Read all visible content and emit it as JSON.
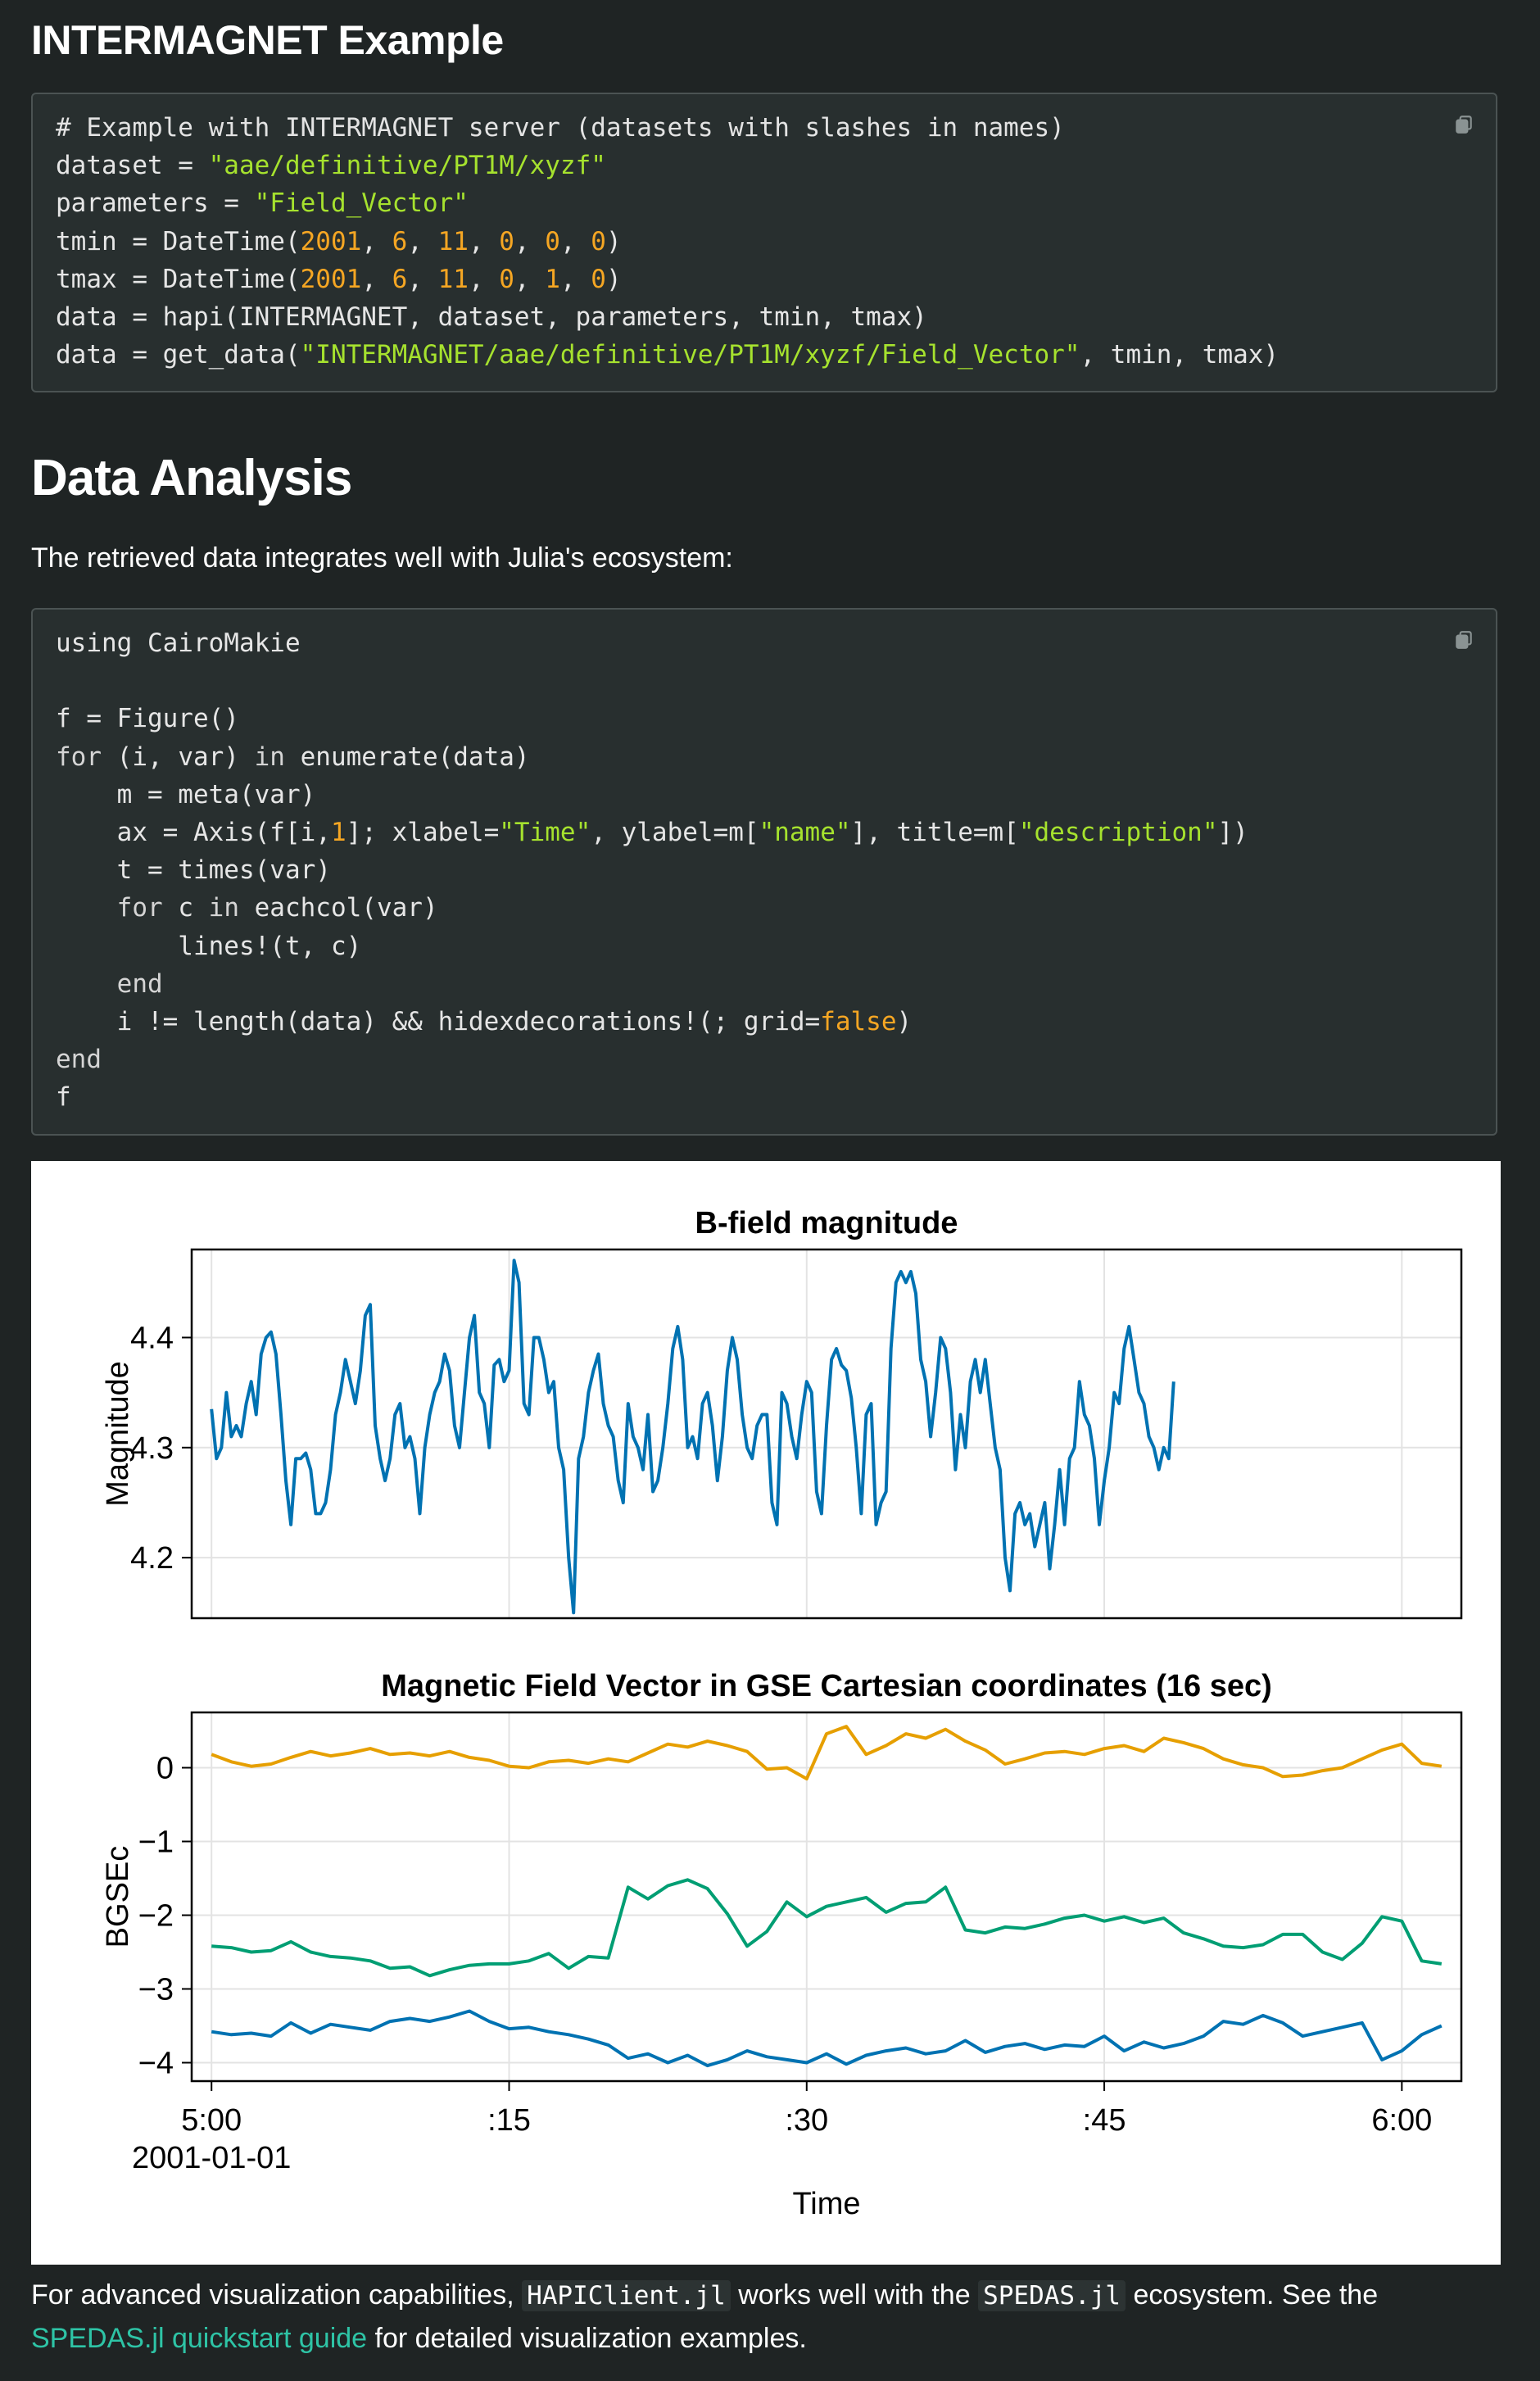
{
  "sections": {
    "intermagnet_heading": "INTERMAGNET Example",
    "analysis_heading": "Data Analysis",
    "analysis_intro": "The retrieved data integrates well with Julia's ecosystem:"
  },
  "code_block_1": {
    "lines": [
      [
        {
          "t": "# Example with INTERMAGNET server (datasets with slashes in names)",
          "c": "c"
        }
      ],
      [
        {
          "t": "dataset = ",
          "c": ""
        },
        {
          "t": "\"aae/definitive/PT1M/xyzf\"",
          "c": "s"
        }
      ],
      [
        {
          "t": "parameters = ",
          "c": ""
        },
        {
          "t": "\"Field_Vector\"",
          "c": "s"
        }
      ],
      [
        {
          "t": "tmin = DateTime(",
          "c": ""
        },
        {
          "t": "2001",
          "c": "n"
        },
        {
          "t": ", ",
          "c": ""
        },
        {
          "t": "6",
          "c": "n"
        },
        {
          "t": ", ",
          "c": ""
        },
        {
          "t": "11",
          "c": "n"
        },
        {
          "t": ", ",
          "c": ""
        },
        {
          "t": "0",
          "c": "n"
        },
        {
          "t": ", ",
          "c": ""
        },
        {
          "t": "0",
          "c": "n"
        },
        {
          "t": ", ",
          "c": ""
        },
        {
          "t": "0",
          "c": "n"
        },
        {
          "t": ")",
          "c": ""
        }
      ],
      [
        {
          "t": "tmax = DateTime(",
          "c": ""
        },
        {
          "t": "2001",
          "c": "n"
        },
        {
          "t": ", ",
          "c": ""
        },
        {
          "t": "6",
          "c": "n"
        },
        {
          "t": ", ",
          "c": ""
        },
        {
          "t": "11",
          "c": "n"
        },
        {
          "t": ", ",
          "c": ""
        },
        {
          "t": "0",
          "c": "n"
        },
        {
          "t": ", ",
          "c": ""
        },
        {
          "t": "1",
          "c": "n"
        },
        {
          "t": ", ",
          "c": ""
        },
        {
          "t": "0",
          "c": "n"
        },
        {
          "t": ")",
          "c": ""
        }
      ],
      [
        {
          "t": "data = hapi(INTERMAGNET, dataset, parameters, tmin, tmax)",
          "c": ""
        }
      ],
      [
        {
          "t": "data = get_data(",
          "c": ""
        },
        {
          "t": "\"INTERMAGNET/aae/definitive/PT1M/xyzf/Field_Vector\"",
          "c": "s"
        },
        {
          "t": ", tmin, tmax)",
          "c": ""
        }
      ]
    ]
  },
  "code_block_2": {
    "lines": [
      [
        {
          "t": "using CairoMakie",
          "c": ""
        }
      ],
      [
        {
          "t": "",
          "c": ""
        }
      ],
      [
        {
          "t": "f = Figure()",
          "c": ""
        }
      ],
      [
        {
          "t": "for",
          "c": "k"
        },
        {
          "t": " (i, var) ",
          "c": ""
        },
        {
          "t": "in",
          "c": "k"
        },
        {
          "t": " enumerate(data)",
          "c": ""
        }
      ],
      [
        {
          "t": "    m = meta(var)",
          "c": ""
        }
      ],
      [
        {
          "t": "    ax = Axis(f[i,",
          "c": ""
        },
        {
          "t": "1",
          "c": "n"
        },
        {
          "t": "]; xlabel=",
          "c": ""
        },
        {
          "t": "\"Time\"",
          "c": "s"
        },
        {
          "t": ", ylabel=m[",
          "c": ""
        },
        {
          "t": "\"name\"",
          "c": "s"
        },
        {
          "t": "], title=m[",
          "c": ""
        },
        {
          "t": "\"description\"",
          "c": "s"
        },
        {
          "t": "])",
          "c": ""
        }
      ],
      [
        {
          "t": "    t = times(var)",
          "c": ""
        }
      ],
      [
        {
          "t": "    for",
          "c": "k"
        },
        {
          "t": " c ",
          "c": ""
        },
        {
          "t": "in",
          "c": "k"
        },
        {
          "t": " eachcol(var)",
          "c": ""
        }
      ],
      [
        {
          "t": "        lines!(t, c)",
          "c": ""
        }
      ],
      [
        {
          "t": "    end",
          "c": "k"
        }
      ],
      [
        {
          "t": "    i != length(data) && hidexdecorations!(; grid=",
          "c": ""
        },
        {
          "t": "false",
          "c": "n"
        },
        {
          "t": ")",
          "c": ""
        }
      ],
      [
        {
          "t": "end",
          "c": "k"
        }
      ],
      [
        {
          "t": "f",
          "c": ""
        }
      ]
    ]
  },
  "colors": {
    "keyword": "#d5d5d5",
    "string": "#a6e22e",
    "number": "#f5a623",
    "series_blue": "#0072b2",
    "series_orange": "#e69f00",
    "series_green": "#009e73",
    "link": "#2ec4a6"
  },
  "icons": {
    "copy": "copy-icon"
  },
  "chart_data": [
    {
      "type": "line",
      "title": "B-field magnitude",
      "ylabel": "Magnitude",
      "xlabel": "",
      "xlim_minutes": [
        -1,
        63
      ],
      "ylim": [
        4.145,
        4.48
      ],
      "yticks": [
        4.2,
        4.3,
        4.4
      ],
      "ytick_labels": [
        "4.2",
        "4.3",
        "4.4"
      ],
      "xticks_minutes": [
        0,
        15,
        30,
        45,
        60
      ],
      "grid": true,
      "series": [
        {
          "color": "#0072b2",
          "t0_minutes": 0,
          "dt_minutes": 0.25,
          "values": [
            4.335,
            4.29,
            4.3,
            4.35,
            4.31,
            4.32,
            4.31,
            4.34,
            4.36,
            4.33,
            4.385,
            4.4,
            4.405,
            4.385,
            4.33,
            4.27,
            4.23,
            4.29,
            4.29,
            4.295,
            4.28,
            4.24,
            4.24,
            4.25,
            4.28,
            4.33,
            4.35,
            4.38,
            4.36,
            4.34,
            4.37,
            4.42,
            4.43,
            4.32,
            4.29,
            4.27,
            4.29,
            4.33,
            4.34,
            4.3,
            4.31,
            4.29,
            4.24,
            4.3,
            4.33,
            4.35,
            4.36,
            4.385,
            4.37,
            4.32,
            4.3,
            4.35,
            4.4,
            4.42,
            4.35,
            4.34,
            4.3,
            4.375,
            4.38,
            4.36,
            4.37,
            4.47,
            4.45,
            4.34,
            4.33,
            4.4,
            4.4,
            4.38,
            4.35,
            4.36,
            4.3,
            4.28,
            4.2,
            4.15,
            4.29,
            4.31,
            4.35,
            4.37,
            4.385,
            4.34,
            4.32,
            4.31,
            4.27,
            4.25,
            4.34,
            4.31,
            4.3,
            4.28,
            4.33,
            4.26,
            4.27,
            4.3,
            4.34,
            4.39,
            4.41,
            4.38,
            4.3,
            4.31,
            4.29,
            4.34,
            4.35,
            4.32,
            4.27,
            4.31,
            4.37,
            4.4,
            4.38,
            4.33,
            4.3,
            4.29,
            4.32,
            4.33,
            4.33,
            4.25,
            4.23,
            4.35,
            4.34,
            4.31,
            4.29,
            4.33,
            4.36,
            4.35,
            4.26,
            4.24,
            4.32,
            4.38,
            4.39,
            4.375,
            4.37,
            4.345,
            4.3,
            4.24,
            4.33,
            4.34,
            4.23,
            4.25,
            4.26,
            4.39,
            4.45,
            4.46,
            4.45,
            4.46,
            4.44,
            4.38,
            4.36,
            4.31,
            4.35,
            4.4,
            4.39,
            4.35,
            4.28,
            4.33,
            4.3,
            4.36,
            4.38,
            4.35,
            4.38,
            4.34,
            4.3,
            4.28,
            4.2,
            4.17,
            4.24,
            4.25,
            4.23,
            4.24,
            4.21,
            4.23,
            4.25,
            4.19,
            4.23,
            4.28,
            4.23,
            4.29,
            4.3,
            4.36,
            4.33,
            4.32,
            4.29,
            4.23,
            4.27,
            4.3,
            4.35,
            4.34,
            4.39,
            4.41,
            4.38,
            4.35,
            4.34,
            4.31,
            4.3,
            4.28,
            4.3,
            4.29,
            4.36
          ]
        }
      ]
    },
    {
      "type": "line",
      "title": "Magnetic Field Vector in GSE Cartesian coordinates (16 sec)",
      "ylabel": "BGSEc",
      "xlabel": "Time",
      "xlim_minutes": [
        -1,
        63
      ],
      "ylim": [
        -4.25,
        0.75
      ],
      "yticks": [
        -4,
        -3,
        -2,
        -1,
        0
      ],
      "ytick_labels": [
        "−4",
        "−3",
        "−2",
        "−1",
        "0"
      ],
      "xticks_minutes": [
        0,
        15,
        30,
        45,
        60
      ],
      "xtick_labels": [
        "5:00",
        ":15",
        ":30",
        ":45",
        "6:00"
      ],
      "xtick_sublabel": "2001-01-01",
      "grid": true,
      "series": [
        {
          "color": "#e69f00",
          "t0_minutes": 0,
          "dt_minutes": 1,
          "values": [
            0.18,
            0.08,
            0.02,
            0.05,
            0.14,
            0.22,
            0.16,
            0.2,
            0.26,
            0.18,
            0.2,
            0.16,
            0.22,
            0.14,
            0.1,
            0.02,
            0.0,
            0.08,
            0.1,
            0.06,
            0.12,
            0.08,
            0.2,
            0.32,
            0.28,
            0.36,
            0.3,
            0.22,
            -0.02,
            0.0,
            -0.15,
            0.46,
            0.56,
            0.18,
            0.3,
            0.46,
            0.4,
            0.52,
            0.36,
            0.24,
            0.05,
            0.12,
            0.2,
            0.22,
            0.18,
            0.26,
            0.3,
            0.22,
            0.4,
            0.34,
            0.26,
            0.12,
            0.04,
            0.0,
            -0.12,
            -0.1,
            -0.04,
            0.0,
            0.12,
            0.24,
            0.32,
            0.06,
            0.02
          ]
        },
        {
          "color": "#009e73",
          "t0_minutes": 0,
          "dt_minutes": 1,
          "values": [
            -2.42,
            -2.44,
            -2.5,
            -2.48,
            -2.36,
            -2.5,
            -2.56,
            -2.58,
            -2.62,
            -2.72,
            -2.7,
            -2.82,
            -2.74,
            -2.68,
            -2.66,
            -2.66,
            -2.62,
            -2.52,
            -2.72,
            -2.56,
            -2.58,
            -1.62,
            -1.78,
            -1.6,
            -1.52,
            -1.64,
            -1.98,
            -2.42,
            -2.22,
            -1.82,
            -2.02,
            -1.88,
            -1.82,
            -1.76,
            -1.96,
            -1.84,
            -1.82,
            -1.62,
            -2.2,
            -2.24,
            -2.16,
            -2.18,
            -2.12,
            -2.04,
            -2.0,
            -2.08,
            -2.02,
            -2.1,
            -2.04,
            -2.24,
            -2.32,
            -2.42,
            -2.44,
            -2.4,
            -2.26,
            -2.26,
            -2.5,
            -2.6,
            -2.38,
            -2.02,
            -2.08,
            -2.62,
            -2.66
          ]
        },
        {
          "color": "#0072b2",
          "t0_minutes": 0,
          "dt_minutes": 1,
          "values": [
            -3.58,
            -3.62,
            -3.6,
            -3.64,
            -3.46,
            -3.6,
            -3.48,
            -3.52,
            -3.56,
            -3.44,
            -3.4,
            -3.44,
            -3.38,
            -3.3,
            -3.44,
            -3.54,
            -3.52,
            -3.58,
            -3.62,
            -3.68,
            -3.76,
            -3.94,
            -3.88,
            -4.0,
            -3.9,
            -4.04,
            -3.96,
            -3.84,
            -3.92,
            -3.96,
            -4.0,
            -3.88,
            -4.02,
            -3.9,
            -3.84,
            -3.8,
            -3.88,
            -3.84,
            -3.7,
            -3.86,
            -3.78,
            -3.74,
            -3.82,
            -3.76,
            -3.78,
            -3.64,
            -3.84,
            -3.72,
            -3.8,
            -3.74,
            -3.64,
            -3.44,
            -3.48,
            -3.36,
            -3.46,
            -3.64,
            -3.58,
            -3.52,
            -3.46,
            -3.96,
            -3.84,
            -3.62,
            -3.5
          ]
        }
      ]
    }
  ],
  "footer": {
    "text_1": "For advanced visualization capabilities, ",
    "code_1": "HAPIClient.jl",
    "text_2": " works well with the ",
    "code_2": "SPEDAS.jl",
    "text_3": " ecosystem. See the",
    "link": "SPEDAS.jl quickstart guide",
    "text_4": " for detailed visualization examples."
  }
}
